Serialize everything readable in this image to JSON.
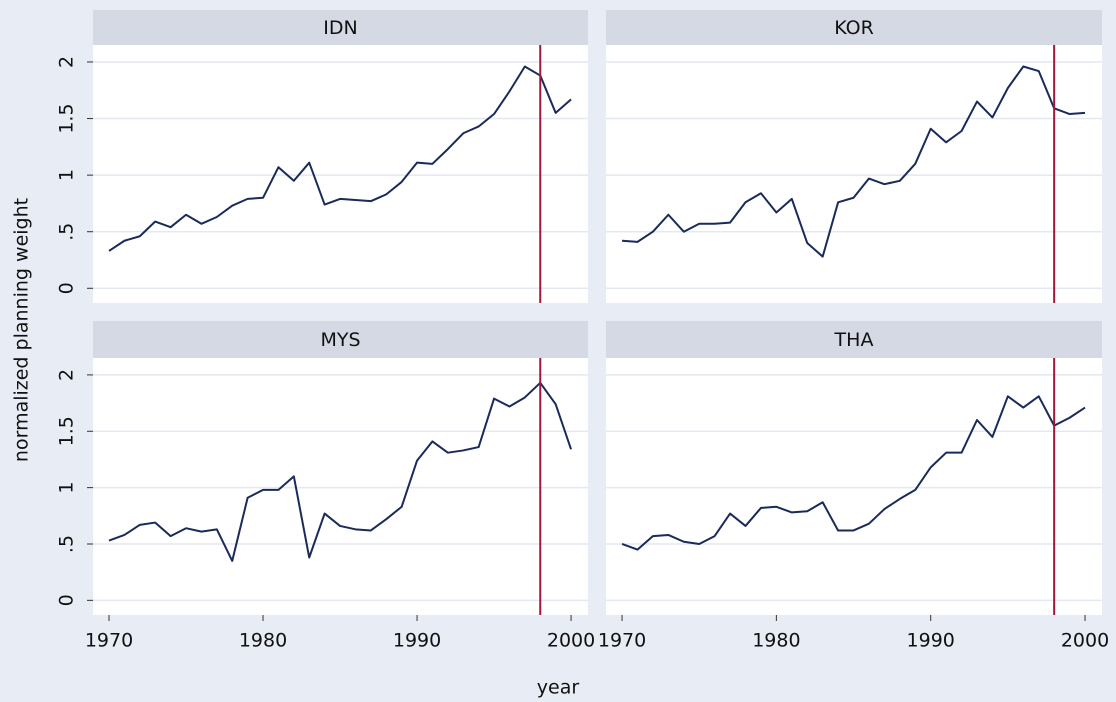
{
  "chart_data": {
    "type": "line",
    "facet": true,
    "xlabel": "year",
    "ylabel": "normalized planning weight",
    "x": [
      1970,
      1971,
      1972,
      1973,
      1974,
      1975,
      1976,
      1977,
      1978,
      1979,
      1980,
      1981,
      1982,
      1983,
      1984,
      1985,
      1986,
      1987,
      1988,
      1989,
      1990,
      1991,
      1992,
      1993,
      1994,
      1995,
      1996,
      1997,
      1998,
      1999,
      2000
    ],
    "xlim": [
      1968.96,
      2001.1
    ],
    "xticks": [
      1970,
      1980,
      1990,
      2000
    ],
    "ylim": [
      -0.13,
      2.15
    ],
    "yticks": [
      0,
      {
        "value": 0.5,
        "label": ".5"
      },
      1,
      1.5,
      2
    ],
    "grid": true,
    "xline": 1998,
    "xline_color": "#a3163c",
    "series": [
      {
        "name": "IDN",
        "color": "#1a2a5a",
        "values": [
          0.33,
          0.42,
          0.46,
          0.59,
          0.54,
          0.65,
          0.57,
          0.63,
          0.73,
          0.79,
          0.8,
          1.07,
          0.95,
          1.11,
          0.74,
          0.79,
          0.78,
          0.77,
          0.83,
          0.94,
          1.11,
          1.1,
          1.23,
          1.37,
          1.43,
          1.54,
          1.74,
          1.96,
          1.88,
          1.55,
          1.67
        ]
      },
      {
        "name": "KOR",
        "color": "#1a2a5a",
        "values": [
          0.42,
          0.41,
          0.5,
          0.65,
          0.5,
          0.57,
          0.57,
          0.58,
          0.76,
          0.84,
          0.67,
          0.79,
          0.4,
          0.28,
          0.76,
          0.8,
          0.97,
          0.92,
          0.95,
          1.1,
          1.41,
          1.29,
          1.39,
          1.65,
          1.51,
          1.77,
          1.96,
          1.92,
          1.59,
          1.54,
          1.55
        ]
      },
      {
        "name": "MYS",
        "color": "#1a2a5a",
        "values": [
          0.53,
          0.58,
          0.67,
          0.69,
          0.57,
          0.64,
          0.61,
          0.63,
          0.35,
          0.91,
          0.98,
          0.98,
          1.1,
          0.38,
          0.77,
          0.66,
          0.63,
          0.62,
          0.72,
          0.83,
          1.24,
          1.41,
          1.31,
          1.33,
          1.36,
          1.79,
          1.72,
          1.8,
          1.93,
          1.74,
          1.34
        ]
      },
      {
        "name": "THA",
        "color": "#1a2a5a",
        "values": [
          0.5,
          0.45,
          0.57,
          0.58,
          0.52,
          0.5,
          0.57,
          0.77,
          0.66,
          0.82,
          0.83,
          0.78,
          0.79,
          0.87,
          0.62,
          0.62,
          0.68,
          0.81,
          0.9,
          0.98,
          1.18,
          1.31,
          1.31,
          1.6,
          1.45,
          1.81,
          1.71,
          1.81,
          1.55,
          1.62,
          1.71
        ]
      }
    ]
  }
}
